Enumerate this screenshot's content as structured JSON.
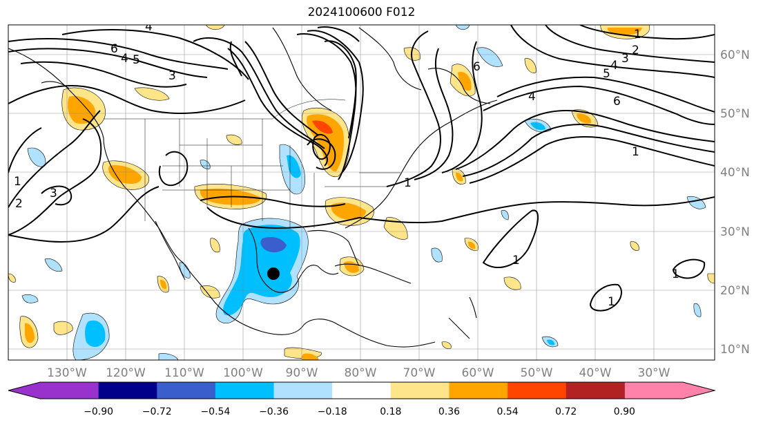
{
  "title": "2024100600 F012",
  "lat_labels": [
    "60°N",
    "50°N",
    "40°N",
    "30°N",
    "20°N",
    "10°N"
  ],
  "lon_labels": [
    "130°W",
    "120°W",
    "110°W",
    "100°W",
    "90°W",
    "80°W",
    "70°W",
    "60°W",
    "50°W",
    "40°W",
    "30°W"
  ],
  "colorbar": {
    "ticks": [
      "−0.90",
      "−0.72",
      "−0.54",
      "−0.36",
      "−0.18",
      "0.18",
      "0.36",
      "0.54",
      "0.72",
      "0.90"
    ],
    "colors": [
      "#9932cc",
      "#00008b",
      "#3a5fcd",
      "#00bfff",
      "#b0e2ff",
      "#ffffff",
      "#ffe58a",
      "#ffa500",
      "#ff4500",
      "#b22222",
      "#ff82ab"
    ]
  },
  "contour_labels": [
    "6",
    "4",
    "5",
    "3",
    "4",
    "1",
    "2",
    "3",
    "1",
    "1",
    "1",
    "6",
    "4",
    "6",
    "5",
    "4",
    "3",
    "2",
    "1",
    "1",
    "1"
  ],
  "storm_marker": "storm-center"
}
